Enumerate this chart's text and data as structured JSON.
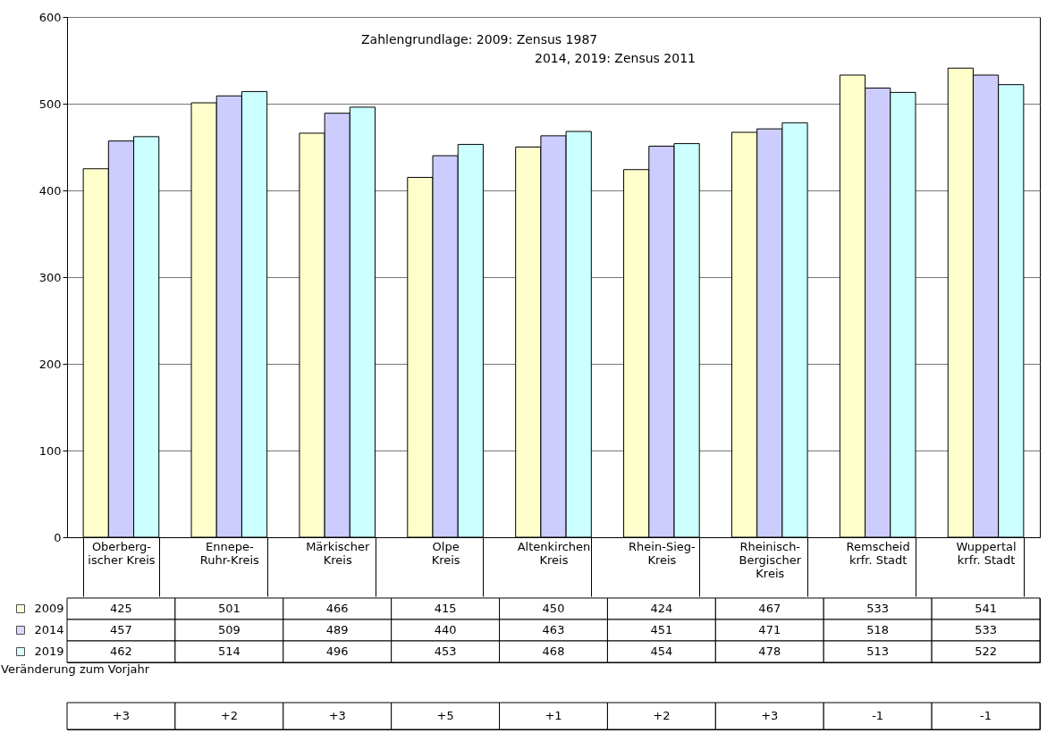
{
  "chart_data": {
    "type": "bar",
    "categories": [
      "Oberberg-\nischer Kreis",
      "Ennepe-\nRuhr-Kreis",
      "Märkischer\nKreis",
      "Olpe\nKreis",
      "Altenkirchen\nKreis",
      "Rhein-Sieg-\nKreis",
      "Rheinisch-\nBergischer\nKreis",
      "Remscheid\nkrfr. Stadt",
      "Wuppertal\nkrfr. Stadt"
    ],
    "series": [
      {
        "name": "2009",
        "color": "#ffffcc",
        "values": [
          425,
          501,
          466,
          415,
          450,
          424,
          467,
          533,
          541
        ]
      },
      {
        "name": "2014",
        "color": "#ccccff",
        "values": [
          457,
          509,
          489,
          440,
          463,
          451,
          471,
          518,
          533
        ]
      },
      {
        "name": "2019",
        "color": "#ccffff",
        "values": [
          462,
          514,
          496,
          453,
          468,
          454,
          478,
          513,
          522
        ]
      }
    ],
    "ylim": [
      0,
      600
    ],
    "yticks": [
      0,
      100,
      200,
      300,
      400,
      500,
      600
    ],
    "grid": "y",
    "legend": "bottom left",
    "data_labels": true,
    "annotations": [
      "Zahlengrundlage: 2009: Zensus 1987",
      "2014, 2019: Zensus 2011",
      "Veränderung zum Vorjahr",
      "+3",
      "+2",
      "+3",
      "+5",
      "+1",
      "+2",
      "+3",
      "-1",
      "-1"
    ]
  }
}
